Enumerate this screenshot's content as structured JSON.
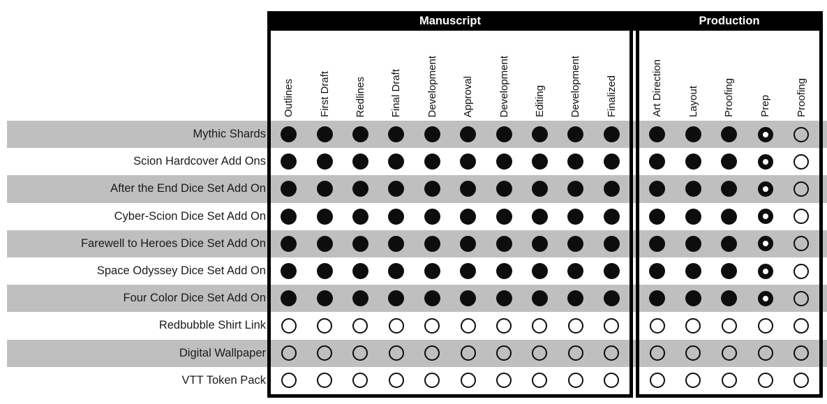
{
  "colors": {
    "page_bg": "#ffffff",
    "stripe": "#bfbfbf",
    "header_bg": "#000000",
    "header_text": "#ffffff",
    "dot": "#0d0d0d",
    "row_label_text": "#1a1a1a",
    "table_border": "#000000"
  },
  "chart_data": {
    "type": "table",
    "description": "Project status matrix: rows are products, columns are workflow stages; filled dot = stage complete, donut dot = stage partially complete, empty dot = stage not started",
    "legend_position": "none",
    "sections": [
      {
        "title": "Manuscript",
        "columns": [
          "Outlines",
          "First Draft",
          "Redlines",
          "Final Draft",
          "Development",
          "Approval",
          "Development",
          "Editing",
          "Development",
          "Finalized"
        ]
      },
      {
        "title": "Production",
        "columns": [
          "Art Direction",
          "Layout",
          "Proofing",
          "Prep",
          "Proofing"
        ]
      }
    ],
    "symbol_states": [
      "filled",
      "donut",
      "empty"
    ],
    "rows": [
      {
        "label": "Mythic Shards",
        "manuscript": [
          "filled",
          "filled",
          "filled",
          "filled",
          "filled",
          "filled",
          "filled",
          "filled",
          "filled",
          "filled"
        ],
        "production": [
          "filled",
          "filled",
          "filled",
          "donut",
          "empty"
        ]
      },
      {
        "label": "Scion Hardcover Add Ons",
        "manuscript": [
          "filled",
          "filled",
          "filled",
          "filled",
          "filled",
          "filled",
          "filled",
          "filled",
          "filled",
          "filled"
        ],
        "production": [
          "filled",
          "filled",
          "filled",
          "donut",
          "empty"
        ]
      },
      {
        "label": "After the End Dice Set Add On",
        "manuscript": [
          "filled",
          "filled",
          "filled",
          "filled",
          "filled",
          "filled",
          "filled",
          "filled",
          "filled",
          "filled"
        ],
        "production": [
          "filled",
          "filled",
          "filled",
          "donut",
          "empty"
        ]
      },
      {
        "label": "Cyber-Scion Dice Set Add On",
        "manuscript": [
          "filled",
          "filled",
          "filled",
          "filled",
          "filled",
          "filled",
          "filled",
          "filled",
          "filled",
          "filled"
        ],
        "production": [
          "filled",
          "filled",
          "filled",
          "donut",
          "empty"
        ]
      },
      {
        "label": "Farewell to Heroes Dice Set Add On",
        "manuscript": [
          "filled",
          "filled",
          "filled",
          "filled",
          "filled",
          "filled",
          "filled",
          "filled",
          "filled",
          "filled"
        ],
        "production": [
          "filled",
          "filled",
          "filled",
          "donut",
          "empty"
        ]
      },
      {
        "label": "Space Odyssey Dice Set Add On",
        "manuscript": [
          "filled",
          "filled",
          "filled",
          "filled",
          "filled",
          "filled",
          "filled",
          "filled",
          "filled",
          "filled"
        ],
        "production": [
          "filled",
          "filled",
          "filled",
          "donut",
          "empty"
        ]
      },
      {
        "label": "Four Color Dice Set Add On",
        "manuscript": [
          "filled",
          "filled",
          "filled",
          "filled",
          "filled",
          "filled",
          "filled",
          "filled",
          "filled",
          "filled"
        ],
        "production": [
          "filled",
          "filled",
          "filled",
          "donut",
          "empty"
        ]
      },
      {
        "label": "Redbubble Shirt Link",
        "manuscript": [
          "empty",
          "empty",
          "empty",
          "empty",
          "empty",
          "empty",
          "empty",
          "empty",
          "empty",
          "empty"
        ],
        "production": [
          "empty",
          "empty",
          "empty",
          "empty",
          "empty"
        ]
      },
      {
        "label": "Digital Wallpaper",
        "manuscript": [
          "empty",
          "empty",
          "empty",
          "empty",
          "empty",
          "empty",
          "empty",
          "empty",
          "empty",
          "empty"
        ],
        "production": [
          "empty",
          "empty",
          "empty",
          "empty",
          "empty"
        ]
      },
      {
        "label": "VTT Token Pack",
        "manuscript": [
          "empty",
          "empty",
          "empty",
          "empty",
          "empty",
          "empty",
          "empty",
          "empty",
          "empty",
          "empty"
        ],
        "production": [
          "empty",
          "empty",
          "empty",
          "empty",
          "empty"
        ]
      }
    ]
  }
}
